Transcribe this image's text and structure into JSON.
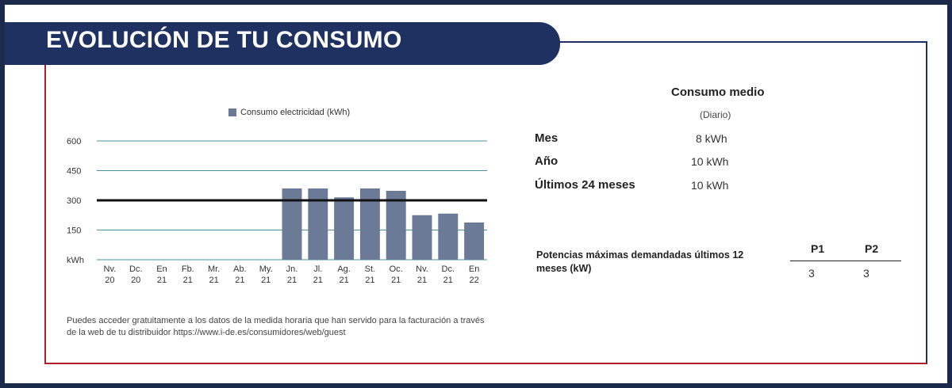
{
  "header": {
    "title": "EVOLUCIÓN DE TU CONSUMO"
  },
  "colors": {
    "navy": "#1e3161",
    "accent_red": "#b3202a",
    "bar": "#6b7a96",
    "grid": "#4a8fa0"
  },
  "chart_data": {
    "type": "bar",
    "legend": "Consumo electricidad (kWh)",
    "ylabel": "kWh",
    "ylim": [
      0,
      600
    ],
    "yticks": [
      150,
      300,
      450,
      600
    ],
    "reference_line": 300,
    "categories": [
      [
        "Nv.",
        "20"
      ],
      [
        "Dc.",
        "20"
      ],
      [
        "En",
        "21"
      ],
      [
        "Fb.",
        "21"
      ],
      [
        "Mr.",
        "21"
      ],
      [
        "Ab.",
        "21"
      ],
      [
        "My.",
        "21"
      ],
      [
        "Jn.",
        "21"
      ],
      [
        "Jl.",
        "21"
      ],
      [
        "Ag.",
        "21"
      ],
      [
        "St.",
        "21"
      ],
      [
        "Oc.",
        "21"
      ],
      [
        "Nv.",
        "21"
      ],
      [
        "Dc.",
        "21"
      ],
      [
        "En",
        "22"
      ]
    ],
    "values": [
      0,
      0,
      0,
      0,
      0,
      0,
      0,
      360,
      360,
      315,
      360,
      348,
      225,
      233,
      188
    ]
  },
  "footnote": "Puedes acceder gratuitamente a los datos de la medida horaria que han servido para la facturación a través de la web de tu distribuidor https://www.i-de.es/consumidores/web/guest",
  "consumo_medio": {
    "title": "Consumo medio",
    "subtitle": "(Diario)",
    "rows": [
      {
        "label": "Mes",
        "value": "8 kWh"
      },
      {
        "label": "Año",
        "value": "10 kWh"
      },
      {
        "label": "Últimos 24 meses",
        "value": "10 kWh"
      }
    ]
  },
  "potencias": {
    "label": "Potencias máximas demandadas últimos 12 meses (kW)",
    "p1_label": "P1",
    "p2_label": "P2",
    "p1_value": "3",
    "p2_value": "3"
  }
}
